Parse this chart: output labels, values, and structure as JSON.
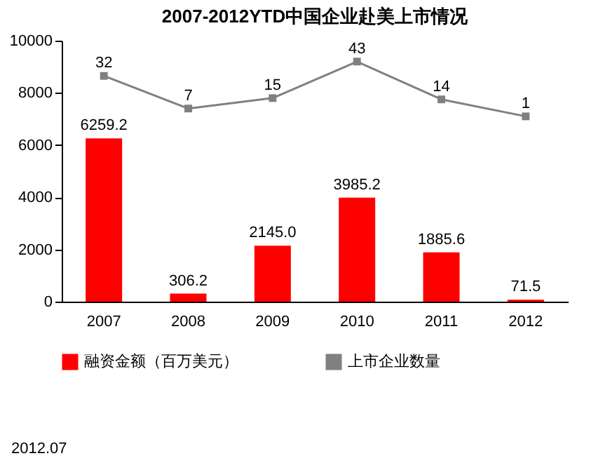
{
  "chart_data": {
    "type": "bar",
    "title": "2007-2012YTD中国企业赴美上市情况",
    "categories": [
      "2007",
      "2008",
      "2009",
      "2010",
      "2011",
      "2012"
    ],
    "series": [
      {
        "name": "融资金额（百万美元）",
        "color": "#ff0000",
        "values": [
          6259.2,
          306.2,
          2145.0,
          3985.2,
          1885.6,
          71.5
        ],
        "value_labels": [
          "6259.2",
          "306.2",
          "2145.0",
          "3985.2",
          "1885.6",
          "71.5"
        ]
      },
      {
        "name": "上市企业数量",
        "type": "line",
        "axis": "y2",
        "color": "#808080",
        "values": [
          32,
          7,
          15,
          43,
          14,
          1
        ],
        "value_labels": [
          "32",
          "7",
          "15",
          "43",
          "14",
          "1"
        ]
      }
    ],
    "ylim": [
      0,
      10000
    ],
    "yticks": [
      0,
      2000,
      4000,
      6000,
      8000,
      10000
    ],
    "marker": "square",
    "legend": "bottom",
    "annotations": [
      "2012.07"
    ]
  }
}
